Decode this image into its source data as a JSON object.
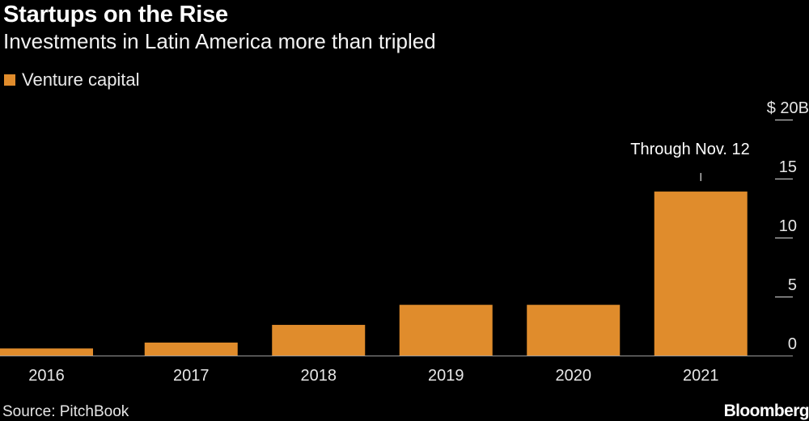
{
  "title": "Startups on the Rise",
  "subtitle": "Investments in Latin America more than tripled",
  "legend": {
    "label": "Venture capital",
    "color": "#e08c2c"
  },
  "source": "Source: PitchBook",
  "brand": "Bloomberg",
  "annotation": {
    "text": "Through Nov. 12",
    "category": "2021"
  },
  "chart_data": {
    "type": "bar",
    "categories": [
      "2016",
      "2017",
      "2018",
      "2019",
      "2020",
      "2021"
    ],
    "series": [
      {
        "name": "Venture capital",
        "values": [
          0.6,
          1.1,
          2.6,
          4.3,
          4.3,
          13.9
        ]
      }
    ],
    "title": "Startups on the Rise",
    "subtitle": "Investments in Latin America more than tripled",
    "ylim": [
      0,
      20
    ],
    "y_ticks": [
      {
        "value": 0,
        "label": "0"
      },
      {
        "value": 5,
        "label": "5"
      },
      {
        "value": 10,
        "label": "10"
      },
      {
        "value": 15,
        "label": "15"
      },
      {
        "value": 20,
        "label": "$ 20B"
      }
    ],
    "y_axis_side": "right",
    "grid": false,
    "legend_position": "top-left",
    "bar_color": "#e08c2c"
  }
}
